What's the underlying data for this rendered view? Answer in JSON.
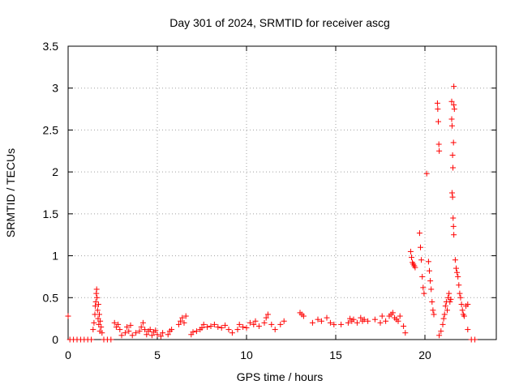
{
  "chart_data": {
    "type": "scatter",
    "title": "Day 301 of 2024, SRMTID for receiver ascg",
    "xlabel": "GPS time / hours",
    "ylabel": "SRMTID / TECUs",
    "xlim": [
      0,
      24
    ],
    "ylim": [
      0,
      3.5
    ],
    "xticks": [
      0,
      5,
      10,
      15,
      20
    ],
    "yticks": [
      0,
      0.5,
      1,
      1.5,
      2,
      2.5,
      3,
      3.5
    ],
    "xtick_labels": [
      "0",
      "5",
      "10",
      "15",
      "20"
    ],
    "ytick_labels": [
      "0",
      "0.5",
      "1",
      "1.5",
      "2",
      "2.5",
      "3",
      "3.5"
    ],
    "grid": true,
    "marker": "+",
    "color": "#ff0000",
    "series": [
      {
        "name": "SRMTID",
        "points": [
          [
            0.0,
            0.28
          ],
          [
            0.1,
            0.0
          ],
          [
            0.3,
            0.0
          ],
          [
            0.5,
            0.0
          ],
          [
            0.7,
            0.0
          ],
          [
            0.9,
            0.0
          ],
          [
            1.1,
            0.0
          ],
          [
            1.3,
            0.0
          ],
          [
            1.4,
            0.12
          ],
          [
            1.45,
            0.2
          ],
          [
            1.5,
            0.3
          ],
          [
            1.52,
            0.4
          ],
          [
            1.55,
            0.45
          ],
          [
            1.58,
            0.55
          ],
          [
            1.6,
            0.6
          ],
          [
            1.62,
            0.5
          ],
          [
            1.65,
            0.35
          ],
          [
            1.68,
            0.25
          ],
          [
            1.7,
            0.42
          ],
          [
            1.72,
            0.18
          ],
          [
            1.75,
            0.3
          ],
          [
            1.78,
            0.1
          ],
          [
            1.8,
            0.22
          ],
          [
            1.85,
            0.15
          ],
          [
            1.9,
            0.08
          ],
          [
            2.0,
            0.0
          ],
          [
            2.2,
            0.0
          ],
          [
            2.4,
            0.0
          ],
          [
            2.6,
            0.2
          ],
          [
            2.7,
            0.15
          ],
          [
            2.8,
            0.18
          ],
          [
            2.9,
            0.12
          ],
          [
            3.0,
            0.05
          ],
          [
            3.2,
            0.08
          ],
          [
            3.3,
            0.15
          ],
          [
            3.4,
            0.1
          ],
          [
            3.5,
            0.17
          ],
          [
            3.6,
            0.05
          ],
          [
            3.8,
            0.08
          ],
          [
            4.0,
            0.1
          ],
          [
            4.1,
            0.15
          ],
          [
            4.2,
            0.2
          ],
          [
            4.3,
            0.12
          ],
          [
            4.4,
            0.06
          ],
          [
            4.5,
            0.1
          ],
          [
            4.6,
            0.12
          ],
          [
            4.7,
            0.05
          ],
          [
            4.8,
            0.09
          ],
          [
            4.9,
            0.11
          ],
          [
            5.0,
            0.06
          ],
          [
            5.2,
            0.04
          ],
          [
            5.3,
            0.08
          ],
          [
            5.6,
            0.06
          ],
          [
            5.7,
            0.1
          ],
          [
            5.8,
            0.12
          ],
          [
            6.2,
            0.18
          ],
          [
            6.3,
            0.22
          ],
          [
            6.4,
            0.26
          ],
          [
            6.5,
            0.2
          ],
          [
            6.6,
            0.28
          ],
          [
            6.9,
            0.06
          ],
          [
            7.0,
            0.09
          ],
          [
            7.2,
            0.1
          ],
          [
            7.4,
            0.12
          ],
          [
            7.5,
            0.14
          ],
          [
            7.6,
            0.18
          ],
          [
            7.8,
            0.15
          ],
          [
            8.0,
            0.16
          ],
          [
            8.2,
            0.18
          ],
          [
            8.4,
            0.15
          ],
          [
            8.6,
            0.14
          ],
          [
            8.8,
            0.17
          ],
          [
            9.0,
            0.12
          ],
          [
            9.2,
            0.08
          ],
          [
            9.5,
            0.12
          ],
          [
            9.6,
            0.18
          ],
          [
            9.8,
            0.15
          ],
          [
            10.0,
            0.14
          ],
          [
            10.2,
            0.2
          ],
          [
            10.4,
            0.18
          ],
          [
            10.5,
            0.22
          ],
          [
            10.7,
            0.16
          ],
          [
            11.0,
            0.2
          ],
          [
            11.1,
            0.26
          ],
          [
            11.2,
            0.3
          ],
          [
            11.4,
            0.18
          ],
          [
            11.6,
            0.12
          ],
          [
            11.9,
            0.18
          ],
          [
            12.1,
            0.22
          ],
          [
            13.0,
            0.32
          ],
          [
            13.1,
            0.3
          ],
          [
            13.2,
            0.28
          ],
          [
            13.7,
            0.2
          ],
          [
            14.0,
            0.24
          ],
          [
            14.2,
            0.22
          ],
          [
            14.5,
            0.26
          ],
          [
            14.7,
            0.2
          ],
          [
            14.9,
            0.18
          ],
          [
            15.3,
            0.18
          ],
          [
            15.7,
            0.2
          ],
          [
            15.8,
            0.25
          ],
          [
            15.9,
            0.22
          ],
          [
            16.0,
            0.24
          ],
          [
            16.2,
            0.2
          ],
          [
            16.4,
            0.26
          ],
          [
            16.5,
            0.22
          ],
          [
            16.6,
            0.24
          ],
          [
            16.8,
            0.22
          ],
          [
            17.2,
            0.24
          ],
          [
            17.5,
            0.2
          ],
          [
            17.6,
            0.28
          ],
          [
            17.8,
            0.22
          ],
          [
            18.0,
            0.28
          ],
          [
            18.1,
            0.3
          ],
          [
            18.2,
            0.32
          ],
          [
            18.3,
            0.26
          ],
          [
            18.4,
            0.24
          ],
          [
            18.5,
            0.22
          ],
          [
            18.6,
            0.28
          ],
          [
            18.8,
            0.16
          ],
          [
            18.9,
            0.08
          ],
          [
            19.2,
            1.05
          ],
          [
            19.25,
            0.98
          ],
          [
            19.3,
            0.92
          ],
          [
            19.35,
            0.9
          ],
          [
            19.4,
            0.88
          ],
          [
            19.45,
            0.86
          ],
          [
            19.7,
            1.27
          ],
          [
            19.75,
            1.1
          ],
          [
            19.8,
            0.95
          ],
          [
            19.85,
            0.75
          ],
          [
            19.9,
            0.62
          ],
          [
            19.95,
            0.55
          ],
          [
            20.2,
            0.93
          ],
          [
            20.25,
            0.82
          ],
          [
            20.3,
            0.7
          ],
          [
            20.35,
            0.6
          ],
          [
            20.4,
            0.45
          ],
          [
            20.45,
            0.35
          ],
          [
            20.5,
            0.3
          ],
          [
            20.1,
            1.98
          ],
          [
            20.7,
            2.82
          ],
          [
            20.72,
            2.75
          ],
          [
            20.75,
            2.6
          ],
          [
            20.78,
            2.33
          ],
          [
            20.8,
            2.25
          ],
          [
            20.8,
            0.05
          ],
          [
            20.9,
            0.1
          ],
          [
            21.0,
            0.18
          ],
          [
            21.05,
            0.25
          ],
          [
            21.1,
            0.3
          ],
          [
            21.15,
            0.4
          ],
          [
            21.2,
            0.45
          ],
          [
            21.25,
            0.35
          ],
          [
            21.3,
            0.5
          ],
          [
            21.35,
            0.55
          ],
          [
            21.4,
            0.45
          ],
          [
            21.45,
            0.48
          ],
          [
            21.5,
            2.84
          ],
          [
            21.5,
            2.63
          ],
          [
            21.52,
            2.55
          ],
          [
            21.55,
            2.2
          ],
          [
            21.57,
            2.05
          ],
          [
            21.6,
            2.35
          ],
          [
            21.62,
            2.8
          ],
          [
            21.62,
            3.02
          ],
          [
            21.65,
            2.75
          ],
          [
            21.52,
            1.75
          ],
          [
            21.55,
            1.7
          ],
          [
            21.58,
            1.45
          ],
          [
            21.6,
            1.35
          ],
          [
            21.62,
            1.25
          ],
          [
            21.7,
            0.95
          ],
          [
            21.75,
            0.85
          ],
          [
            21.8,
            0.8
          ],
          [
            21.85,
            0.75
          ],
          [
            21.9,
            0.65
          ],
          [
            21.95,
            0.55
          ],
          [
            22.0,
            0.5
          ],
          [
            22.05,
            0.42
          ],
          [
            22.1,
            0.35
          ],
          [
            22.15,
            0.3
          ],
          [
            22.2,
            0.28
          ],
          [
            22.3,
            0.4
          ],
          [
            22.4,
            0.42
          ],
          [
            22.4,
            0.12
          ],
          [
            22.6,
            0.0
          ],
          [
            22.8,
            0.0
          ]
        ]
      }
    ]
  }
}
